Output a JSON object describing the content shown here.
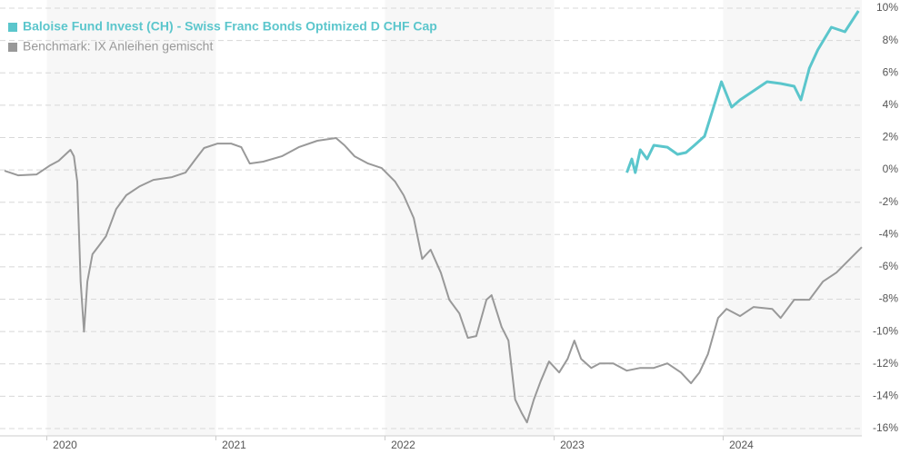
{
  "chart_data": {
    "type": "line",
    "series": [
      {
        "name": "Baloise Fund Invest (CH) - Swiss Franc Bonds Optimized D CHF Cap",
        "color": "#5bc6cc",
        "x": [
          2023.43,
          2023.46,
          2023.48,
          2023.51,
          2023.55,
          2023.59,
          2023.67,
          2023.73,
          2023.78,
          2023.83,
          2023.89,
          2023.94,
          2023.99,
          2024.05,
          2024.1,
          2024.18,
          2024.26,
          2024.34,
          2024.42,
          2024.46,
          2024.51,
          2024.56,
          2024.64,
          2024.72,
          2024.8
        ],
        "values": [
          -0.17,
          0.67,
          -0.17,
          1.24,
          0.67,
          1.52,
          1.4,
          0.96,
          1.07,
          1.52,
          2.08,
          3.76,
          5.45,
          3.88,
          4.33,
          4.89,
          5.45,
          5.34,
          5.17,
          4.33,
          6.29,
          7.42,
          8.82,
          8.54,
          9.83
        ]
      },
      {
        "name": "Benchmark: IX Anleihen gemischt",
        "color": "#999999",
        "x": [
          2019.75,
          2019.83,
          2019.94,
          2020.02,
          2020.07,
          2020.14,
          2020.16,
          2020.18,
          2020.2,
          2020.22,
          2020.24,
          2020.27,
          2020.31,
          2020.35,
          2020.41,
          2020.47,
          2020.55,
          2020.63,
          2020.74,
          2020.82,
          2020.88,
          2020.93,
          2021.01,
          2021.09,
          2021.15,
          2021.2,
          2021.28,
          2021.39,
          2021.49,
          2021.6,
          2021.71,
          2021.76,
          2021.82,
          2021.9,
          2021.98,
          2022.06,
          2022.11,
          2022.17,
          2022.22,
          2022.27,
          2022.33,
          2022.38,
          2022.44,
          2022.49,
          2022.54,
          2022.6,
          2022.63,
          2022.69,
          2022.73,
          2022.77,
          2022.81,
          2022.84,
          2022.88,
          2022.92,
          2022.97,
          2023.03,
          2023.08,
          2023.12,
          2023.16,
          2023.22,
          2023.27,
          2023.35,
          2023.43,
          2023.51,
          2023.59,
          2023.67,
          2023.75,
          2023.81,
          2023.86,
          2023.91,
          2023.97,
          2024.02,
          2024.1,
          2024.18,
          2024.29,
          2024.34,
          2024.42,
          2024.51,
          2024.59,
          2024.67,
          2024.75,
          2024.82
        ],
        "values": [
          -0.06,
          -0.34,
          -0.28,
          0.28,
          0.56,
          1.24,
          0.84,
          -0.73,
          -6.91,
          -10.0,
          -6.91,
          -5.22,
          -4.66,
          -4.1,
          -2.42,
          -1.57,
          -1.01,
          -0.62,
          -0.45,
          -0.17,
          0.67,
          1.35,
          1.63,
          1.63,
          1.4,
          0.39,
          0.51,
          0.84,
          1.4,
          1.8,
          1.97,
          1.52,
          0.84,
          0.39,
          0.11,
          -0.73,
          -1.57,
          -2.98,
          -5.51,
          -4.94,
          -6.35,
          -8.03,
          -8.88,
          -10.39,
          -10.28,
          -8.03,
          -7.75,
          -9.72,
          -10.56,
          -14.21,
          -15.06,
          -15.62,
          -14.21,
          -13.09,
          -11.85,
          -12.53,
          -11.69,
          -10.56,
          -11.69,
          -12.25,
          -11.97,
          -11.97,
          -12.42,
          -12.25,
          -12.25,
          -11.97,
          -12.53,
          -13.2,
          -12.53,
          -11.4,
          -9.16,
          -8.6,
          -9.04,
          -8.48,
          -8.6,
          -9.16,
          -8.03,
          -8.03,
          -6.91,
          -6.35,
          -5.51,
          -4.78
        ]
      }
    ],
    "xlim": [
      2019.75,
      2024.82
    ],
    "xticks": [
      2020,
      2021,
      2022,
      2023,
      2024
    ],
    "ylim": [
      -16,
      10
    ],
    "yticks": [
      {
        "value": 10,
        "label": "10%"
      },
      {
        "value": 8,
        "label": "8%"
      },
      {
        "value": 6,
        "label": "6%"
      },
      {
        "value": 4,
        "label": "4%"
      },
      {
        "value": 2,
        "label": "2%"
      },
      {
        "value": 0,
        "label": "0%"
      },
      {
        "value": -2,
        "label": "-2%"
      },
      {
        "value": -4,
        "label": "-4%"
      },
      {
        "value": -6,
        "label": "-6%"
      },
      {
        "value": -8,
        "label": "-8%"
      },
      {
        "value": -10,
        "label": "-10%"
      },
      {
        "value": -12,
        "label": "-12%"
      },
      {
        "value": -14,
        "label": "-14%"
      },
      {
        "value": -16,
        "label": "-16%"
      }
    ],
    "grid": true
  }
}
